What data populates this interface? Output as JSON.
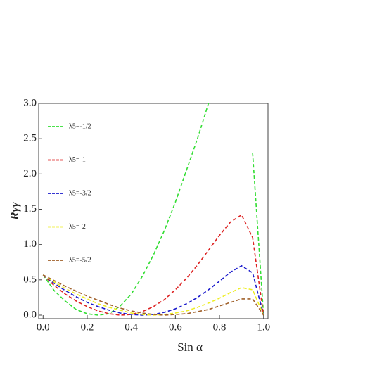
{
  "chart_data": {
    "type": "line",
    "xlabel": "Sin α",
    "ylabel": "Rγγ",
    "x": [
      0,
      0.05,
      0.1,
      0.15,
      0.2,
      0.25,
      0.3,
      0.35,
      0.4,
      0.45,
      0.5,
      0.55,
      0.6,
      0.65,
      0.7,
      0.75,
      0.8,
      0.85,
      0.9,
      0.95,
      1.0
    ],
    "series": [
      {
        "name": "λ5=-1/2",
        "color": "#33dd33",
        "values": [
          0.57,
          0.35,
          0.2,
          0.08,
          0.02,
          0.0,
          0.02,
          0.13,
          0.3,
          0.55,
          0.85,
          1.2,
          1.6,
          2.05,
          2.5,
          3.0,
          null,
          null,
          null,
          2.3,
          0
        ]
      },
      {
        "name": "λ5=-1",
        "color": "#dd2222",
        "values": [
          0.57,
          0.42,
          0.3,
          0.2,
          0.12,
          0.06,
          0.02,
          0.0,
          0.01,
          0.05,
          0.12,
          0.22,
          0.36,
          0.52,
          0.71,
          0.92,
          1.13,
          1.32,
          1.42,
          1.1,
          0
        ]
      },
      {
        "name": "λ5=-3/2",
        "color": "#1a1acc",
        "values": [
          0.57,
          0.45,
          0.35,
          0.26,
          0.18,
          0.12,
          0.07,
          0.03,
          0.01,
          0.0,
          0.01,
          0.04,
          0.09,
          0.16,
          0.25,
          0.36,
          0.48,
          0.61,
          0.7,
          0.6,
          0
        ]
      },
      {
        "name": "λ5=-2",
        "color": "#eeee22",
        "values": [
          0.57,
          0.47,
          0.38,
          0.3,
          0.23,
          0.16,
          0.11,
          0.07,
          0.03,
          0.01,
          0.0,
          0.01,
          0.03,
          0.06,
          0.11,
          0.17,
          0.24,
          0.32,
          0.39,
          0.36,
          0
        ]
      },
      {
        "name": "λ5=-5/2",
        "color": "#a0602a",
        "values": [
          0.57,
          0.49,
          0.41,
          0.34,
          0.27,
          0.21,
          0.15,
          0.1,
          0.06,
          0.03,
          0.01,
          0.0,
          0.01,
          0.02,
          0.05,
          0.08,
          0.13,
          0.18,
          0.23,
          0.23,
          0
        ]
      }
    ],
    "xlim": [
      -0.02,
      1.02
    ],
    "ylim": [
      -0.05,
      3.0
    ],
    "xticks": [
      {
        "value": 0,
        "label": "0.0"
      },
      0.2,
      0.4,
      0.6,
      0.8,
      {
        "value": 1,
        "label": "1.0"
      }
    ],
    "yticks": [
      {
        "value": 0,
        "label": "0.0"
      },
      0.5,
      {
        "value": 1,
        "label": "1.0"
      },
      1.5,
      {
        "value": 2,
        "label": "2.0"
      },
      2.5,
      {
        "value": 3,
        "label": "3.0"
      }
    ],
    "legend": "upper left"
  }
}
